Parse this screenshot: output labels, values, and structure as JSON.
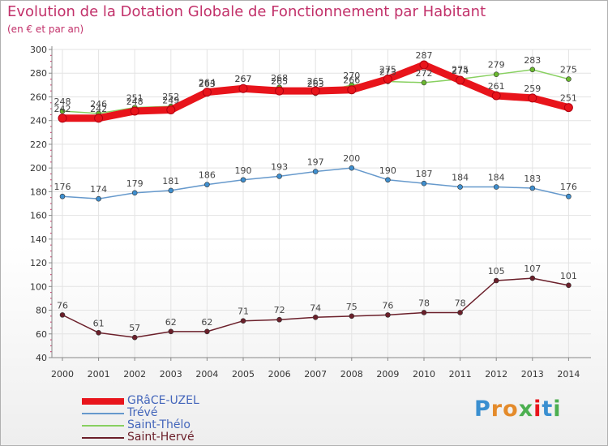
{
  "chart_data": {
    "type": "line",
    "title": "Evolution de la Dotation Globale de Fonctionnement par Habitant",
    "subtitle": "(en € et par an)",
    "xlabel": "",
    "ylabel": "",
    "categories": [
      "2000",
      "2001",
      "2002",
      "2003",
      "2004",
      "2005",
      "2006",
      "2007",
      "2008",
      "2009",
      "2010",
      "2011",
      "2012",
      "2013",
      "2014"
    ],
    "ylim": [
      40,
      300
    ],
    "yticks": [
      40,
      60,
      80,
      100,
      120,
      140,
      160,
      180,
      200,
      220,
      240,
      260,
      280,
      300
    ],
    "grid": true,
    "legend_position": "bottom-left",
    "series": [
      {
        "name": "GRâCE-UZEL",
        "color": "#e8141b",
        "marker_color": "#e8141b",
        "values": [
          242,
          242,
          248,
          249,
          264,
          267,
          265,
          265,
          266,
          275,
          287,
          274,
          261,
          259,
          251
        ]
      },
      {
        "name": "Trévé",
        "color": "#6699cc",
        "marker_color": "#3f8fcf",
        "values": [
          176,
          174,
          179,
          181,
          186,
          190,
          193,
          197,
          200,
          190,
          187,
          184,
          184,
          183,
          176
        ]
      },
      {
        "name": "Saint-Thélo",
        "color": "#88d060",
        "marker_color": "#6ab82f",
        "values": [
          248,
          246,
          251,
          252,
          263,
          267,
          268,
          263,
          270,
          273,
          272,
          275,
          279,
          283,
          275
        ]
      },
      {
        "name": "Saint-Hervé",
        "color": "#6b1f2a",
        "marker_color": "#6b1f2a",
        "values": [
          76,
          61,
          57,
          62,
          62,
          71,
          72,
          74,
          75,
          76,
          78,
          78,
          105,
          107,
          101
        ]
      }
    ]
  },
  "brand": {
    "letters": [
      "P",
      "r",
      "o",
      "x",
      "i",
      "t",
      "i"
    ],
    "colors": [
      "#3a8fd0",
      "#e48b2b",
      "#e48b2b",
      "#4caf50",
      "#e8141b",
      "#3a8fd0",
      "#4caf50"
    ]
  }
}
